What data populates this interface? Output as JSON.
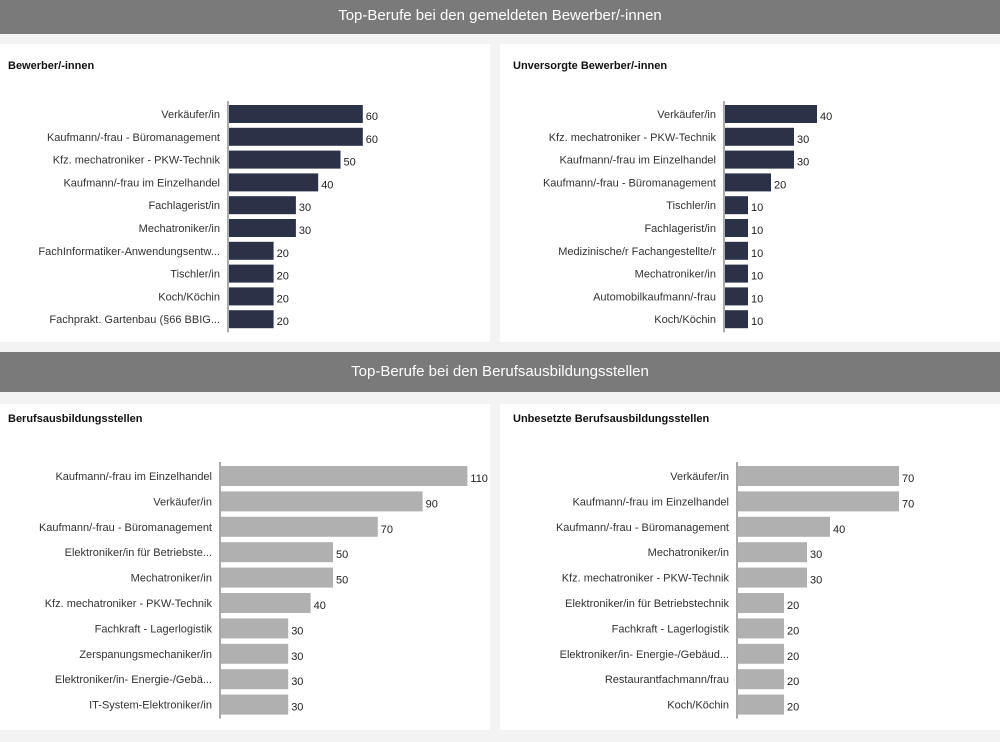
{
  "sections": [
    {
      "title": "Top-Berufe bei den gemeldeten Bewerber/-innen"
    },
    {
      "title": "Top-Berufe bei den Berufsausbildungsstellen"
    }
  ],
  "chart_data": [
    {
      "type": "bar",
      "orientation": "horizontal",
      "title": "Bewerber/-innen",
      "color": "#2b3247",
      "categories": [
        "Verkäufer/in",
        "Kaufmann/-frau - Büromanagement",
        "Kfz. mechatroniker - PKW-Technik",
        "Kaufmann/-frau im Einzelhandel",
        "Fachlagerist/in",
        "Mechatroniker/in",
        "FachInformatiker-Anwendungsentw...",
        "Tischler/in",
        "Koch/Köchin",
        "Fachprakt. Gartenbau (§66 BBIG..."
      ],
      "values": [
        60,
        60,
        50,
        40,
        30,
        30,
        20,
        20,
        20,
        20
      ],
      "xlim": [
        0,
        140
      ]
    },
    {
      "type": "bar",
      "orientation": "horizontal",
      "title": "Unversorgte Bewerber/-innen",
      "color": "#2b3247",
      "categories": [
        "Verkäufer/in",
        "Kfz. mechatroniker - PKW-Technik",
        "Kaufmann/-frau im Einzelhandel",
        "Kaufmann/-frau - Büromanagement",
        "Tischler/in",
        "Fachlagerist/in",
        "Medizinische/r Fachangestellte/r",
        "Mechatroniker/in",
        "Automobilkaufmann/-frau",
        "Koch/Köchin"
      ],
      "values": [
        40,
        30,
        30,
        20,
        10,
        10,
        10,
        10,
        10,
        10
      ],
      "xlim": [
        0,
        140
      ]
    },
    {
      "type": "bar",
      "orientation": "horizontal",
      "title": "Berufsausbildungsstellen",
      "color": "#b0b0b0",
      "categories": [
        "Kaufmann/-frau im Einzelhandel",
        "Verkäufer/in",
        "Kaufmann/-frau - Büromanagement",
        "Elektroniker/in für Betriebste...",
        "Mechatroniker/in",
        "Kfz. mechatroniker - PKW-Technik",
        "Fachkraft - Lagerlogistik",
        "Zerspanungsmechaniker/in",
        "Elektroniker/in- Energie-/Gebä...",
        "IT-System-Elektroniker/in"
      ],
      "values": [
        110,
        90,
        70,
        50,
        50,
        40,
        30,
        30,
        30,
        30
      ],
      "xlim": [
        0,
        140
      ]
    },
    {
      "type": "bar",
      "orientation": "horizontal",
      "title": "Unbesetzte Berufsausbildungsstellen",
      "color": "#b0b0b0",
      "categories": [
        "Verkäufer/in",
        "Kaufmann/-frau im Einzelhandel",
        "Kaufmann/-frau - Büromanagement",
        "Mechatroniker/in",
        "Kfz. mechatroniker - PKW-Technik",
        "Elektroniker/in für Betriebstechnik",
        "Fachkraft - Lagerlogistik",
        "Elektroniker/in- Energie-/Gebäud...",
        "Restaurantfachmann/frau",
        "Koch/Köchin"
      ],
      "values": [
        70,
        70,
        40,
        30,
        30,
        20,
        20,
        20,
        20,
        20
      ],
      "xlim": [
        0,
        140
      ]
    }
  ]
}
